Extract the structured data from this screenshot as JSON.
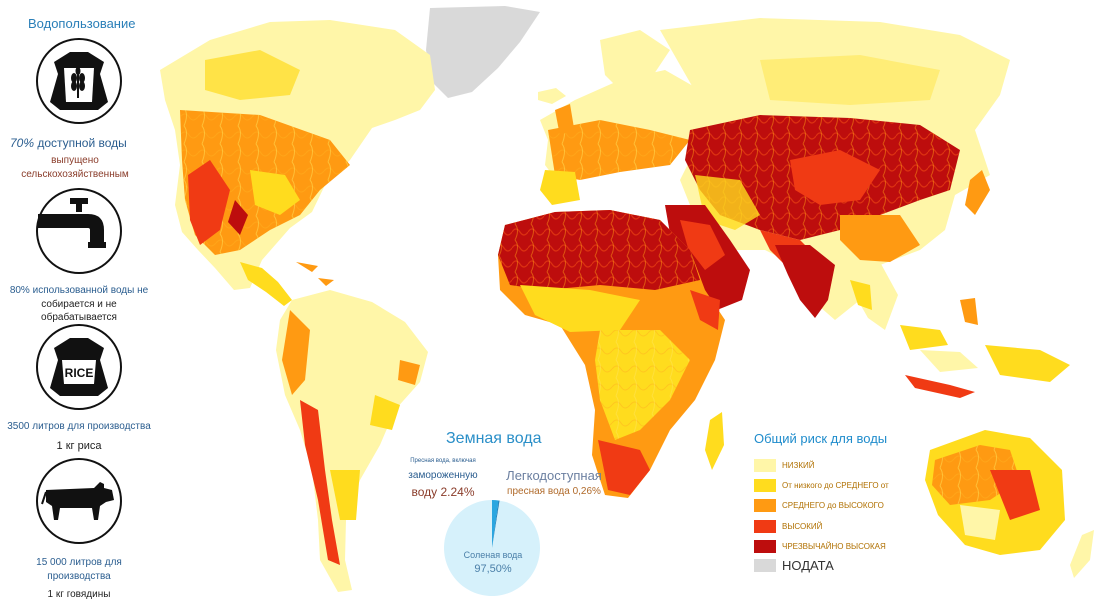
{
  "sidebar": {
    "title": "Водопользование",
    "stat1": {
      "value": "70%",
      "line1": "доступной воды",
      "line2": "выпущено сельскохозяйственным"
    },
    "stat2": {
      "line1": "80% использованной воды не",
      "line2": "собирается и не обрабатывается"
    },
    "rice_label": "RICE",
    "stat3": {
      "line1": "3500 литров для производства",
      "line2": "1 кг риса"
    },
    "stat4": {
      "line1": "15 000 литров для производства",
      "line2": "1 кг говядины"
    }
  },
  "earth_water": {
    "title": "Земная вода",
    "frozen_small": "Пресная вода, включая",
    "frozen_line1": "замороженную",
    "frozen_line2": "воду 2.24%",
    "accessible_line1": "Легкодоступная",
    "accessible_line2": "пресная вода 0,26%",
    "salt_label": "Соленая вода",
    "salt_value": "97,50%",
    "chart_data": {
      "type": "pie",
      "categories": [
        "Соленая вода",
        "Пресная вода, включая замороженную воду",
        "Легкодоступная пресная вода"
      ],
      "values": [
        97.5,
        2.24,
        0.26
      ]
    }
  },
  "legend": {
    "title": "Общий риск для воды",
    "items": [
      {
        "label": "НИЗКИЙ",
        "color": "#fff6a8"
      },
      {
        "label": "От низкого до СРЕДНЕГО от",
        "color": "#ffdc1e"
      },
      {
        "label": "СРЕДНЕГО до ВЫСОКОГО",
        "color": "#ff9a12"
      },
      {
        "label": "ВЫСОКИЙ",
        "color": "#f03a14"
      },
      {
        "label": "ЧРЕЗВЫЧАЙНО ВЫСОКАЯ",
        "color": "#bd0d0d"
      },
      {
        "label": "НОДАТА",
        "color": "#d9d9d9"
      }
    ]
  }
}
